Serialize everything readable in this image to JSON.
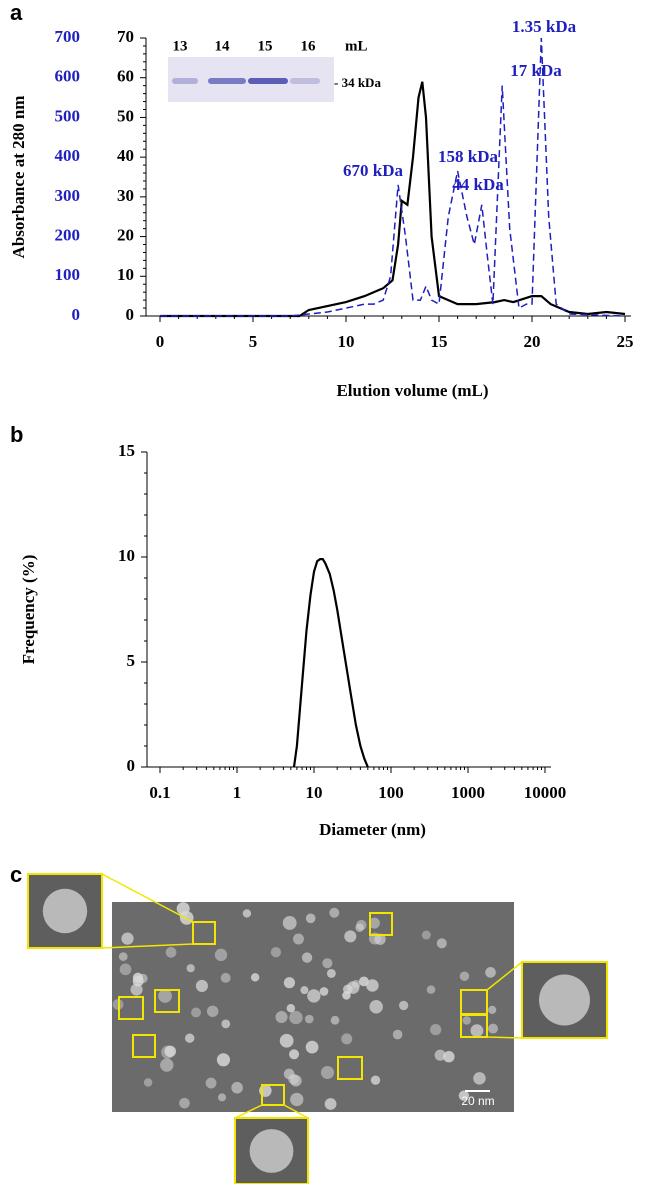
{
  "panel_labels": [
    "a",
    "b",
    "c"
  ],
  "chart_data": [
    {
      "type": "line",
      "xlabel": "Elution volume (mL)",
      "ylabel": "Absorbance at 280 nm",
      "xlim": [
        0,
        25
      ],
      "xticks": [
        0,
        5,
        10,
        15,
        20,
        25
      ],
      "ylim": [
        0,
        70
      ],
      "yticks": [
        0,
        10,
        20,
        30,
        40,
        50,
        60,
        70
      ],
      "y2lim": [
        0,
        700
      ],
      "y2ticks": [
        0,
        100,
        200,
        300,
        400,
        500,
        600,
        700
      ],
      "series": [
        {
          "color": "#000000",
          "style": "solid",
          "x": [
            0,
            7.5,
            8,
            9,
            10,
            11,
            12,
            12.5,
            12.8,
            13,
            13.3,
            13.6,
            13.9,
            14.1,
            14.3,
            14.6,
            15,
            16,
            17,
            18,
            18.5,
            19,
            20,
            20.5,
            21,
            22,
            23,
            24,
            25
          ],
          "values": [
            0,
            0,
            1.5,
            2.5,
            3.5,
            5,
            7,
            9,
            18,
            29,
            28,
            40,
            55,
            59,
            50,
            20,
            5,
            3,
            3,
            3.5,
            4,
            3.5,
            5,
            5,
            3,
            1,
            0.5,
            1,
            0.5
          ]
        },
        {
          "color": "#1f1fbf",
          "style": "dashed",
          "axis": "y2",
          "x": [
            0,
            7,
            9,
            10,
            11,
            11.5,
            12,
            12.4,
            12.8,
            13.2,
            13.6,
            14,
            14.3,
            14.6,
            15,
            15.5,
            16,
            16.5,
            16.9,
            17.3,
            17.6,
            17.9,
            18.4,
            18.8,
            19.3,
            19.7,
            20,
            20.5,
            20.9,
            21.3,
            22,
            25
          ],
          "values": [
            0,
            0,
            10,
            20,
            30,
            30,
            40,
            100,
            330,
            200,
            40,
            40,
            75,
            40,
            30,
            250,
            365,
            250,
            180,
            280,
            150,
            30,
            580,
            220,
            20,
            30,
            30,
            700,
            250,
            30,
            5,
            0
          ]
        }
      ],
      "annotations": [
        "670 kDa",
        "158 kDa",
        "44 kDa",
        "17 kDa",
        "1.35 kDa"
      ],
      "inset": {
        "lanes": [
          "13",
          "14",
          "15",
          "16"
        ],
        "unit": "mL",
        "marker": "- 34 kDa"
      }
    },
    {
      "type": "line",
      "xscale": "log",
      "xlabel": "Diameter (nm)",
      "ylabel": "Frequency (%)",
      "xlim": [
        0.1,
        10000
      ],
      "xticks": [
        0.1,
        1,
        10,
        100,
        1000,
        10000
      ],
      "ylim": [
        0,
        15
      ],
      "yticks": [
        0,
        5,
        10,
        15
      ],
      "series": [
        {
          "color": "#000000",
          "style": "solid",
          "x": [
            5.5,
            6,
            7,
            8,
            9,
            10,
            11,
            12,
            13,
            14,
            16,
            18,
            20,
            25,
            30,
            35,
            40,
            45,
            50
          ],
          "values": [
            0,
            1,
            4,
            6.5,
            8.2,
            9.3,
            9.8,
            9.9,
            9.9,
            9.7,
            9.2,
            8.4,
            7.5,
            5.3,
            3.5,
            2,
            1,
            0.4,
            0
          ]
        }
      ]
    }
  ],
  "micrograph": {
    "scale_bar": "20 nm"
  }
}
